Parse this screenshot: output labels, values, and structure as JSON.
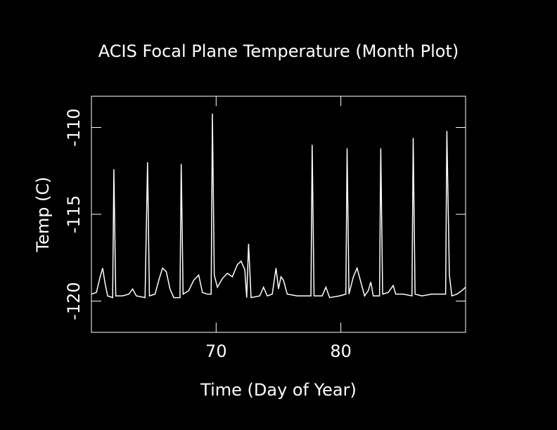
{
  "chart_data": {
    "type": "line",
    "title": "ACIS Focal Plane Temperature (Month Plot)",
    "xlabel": "Time (Day of Year)",
    "ylabel": "Temp (C)",
    "xlim": [
      60,
      90
    ],
    "xticks": [
      70,
      80
    ],
    "ylim": [
      -121.8,
      -108.2
    ],
    "yticks": [
      -110,
      -115,
      -120
    ],
    "color": "#ffffff",
    "x": [
      60.0,
      60.4,
      60.7,
      60.9,
      61.1,
      61.3,
      61.7,
      61.8,
      61.95,
      62.5,
      63.0,
      63.3,
      63.6,
      64.3,
      64.5,
      64.65,
      65.1,
      65.4,
      65.7,
      66.0,
      66.3,
      66.6,
      67.1,
      67.2,
      67.35,
      67.8,
      68.2,
      68.6,
      68.9,
      69.3,
      69.6,
      69.7,
      69.85,
      70.1,
      70.5,
      70.9,
      71.3,
      71.7,
      72.0,
      72.3,
      72.45,
      72.6,
      72.8,
      73.5,
      73.8,
      74.1,
      74.5,
      74.8,
      75.0,
      75.2,
      75.4,
      75.7,
      76.5,
      77.3,
      77.6,
      77.7,
      77.85,
      78.5,
      78.8,
      79.1,
      79.9,
      80.4,
      80.5,
      80.65,
      81.0,
      81.3,
      81.6,
      81.9,
      82.2,
      82.4,
      82.6,
      83.1,
      83.2,
      83.35,
      83.8,
      84.2,
      84.4,
      85.0,
      85.7,
      85.8,
      85.95,
      86.5,
      87.3,
      88.0,
      88.4,
      88.5,
      88.7,
      88.9,
      89.3,
      89.7,
      90.0
    ],
    "values": [
      -119.6,
      -119.5,
      -118.6,
      -118.1,
      -119.0,
      -119.7,
      -119.8,
      -112.4,
      -119.7,
      -119.7,
      -119.6,
      -119.3,
      -119.7,
      -119.8,
      -112.0,
      -119.7,
      -119.6,
      -118.8,
      -118.1,
      -118.3,
      -119.3,
      -119.8,
      -119.8,
      -112.1,
      -119.6,
      -119.4,
      -118.8,
      -118.5,
      -119.5,
      -119.6,
      -119.6,
      -109.2,
      -118.5,
      -119.2,
      -118.7,
      -118.4,
      -118.6,
      -117.9,
      -117.7,
      -118.2,
      -119.8,
      -116.7,
      -119.8,
      -119.7,
      -119.2,
      -119.7,
      -119.6,
      -118.1,
      -119.3,
      -118.6,
      -118.8,
      -119.6,
      -119.7,
      -119.7,
      -119.7,
      -111.0,
      -119.7,
      -119.7,
      -119.2,
      -119.8,
      -119.7,
      -119.6,
      -111.2,
      -119.6,
      -118.6,
      -118.1,
      -118.9,
      -119.7,
      -119.4,
      -118.9,
      -119.7,
      -119.7,
      -111.2,
      -119.6,
      -119.5,
      -119.1,
      -119.6,
      -119.6,
      -119.7,
      -110.6,
      -119.6,
      -119.7,
      -119.6,
      -119.6,
      -119.6,
      -110.2,
      -118.5,
      -119.7,
      -119.6,
      -119.4,
      -119.2
    ]
  }
}
